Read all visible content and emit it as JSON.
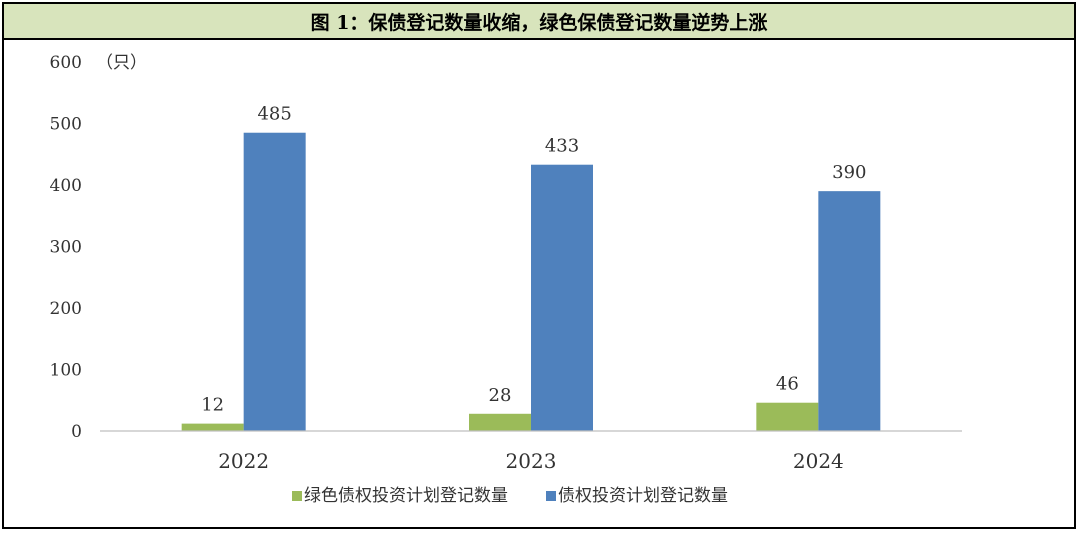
{
  "figure_title": "图 1：保债登记数量收缩，绿色保债登记数量逆势上涨",
  "chart_data": {
    "type": "bar",
    "title": "图 1：保债登记数量收缩，绿色保债登记数量逆势上涨",
    "ylabel": "（只）",
    "categories": [
      "2022",
      "2023",
      "2024"
    ],
    "yticks": [
      "0",
      "100",
      "200",
      "300",
      "400",
      "500",
      "600"
    ],
    "ylim": [
      0,
      600
    ],
    "grid": false,
    "legend_position": "bottom",
    "series": [
      {
        "name": "绿色债权投资计划登记数量",
        "color": "#9bbb59",
        "values": [
          12,
          28,
          46
        ]
      },
      {
        "name": "债权投资计划登记数量",
        "color": "#4f81bd",
        "values": [
          485,
          433,
          390
        ]
      }
    ]
  }
}
